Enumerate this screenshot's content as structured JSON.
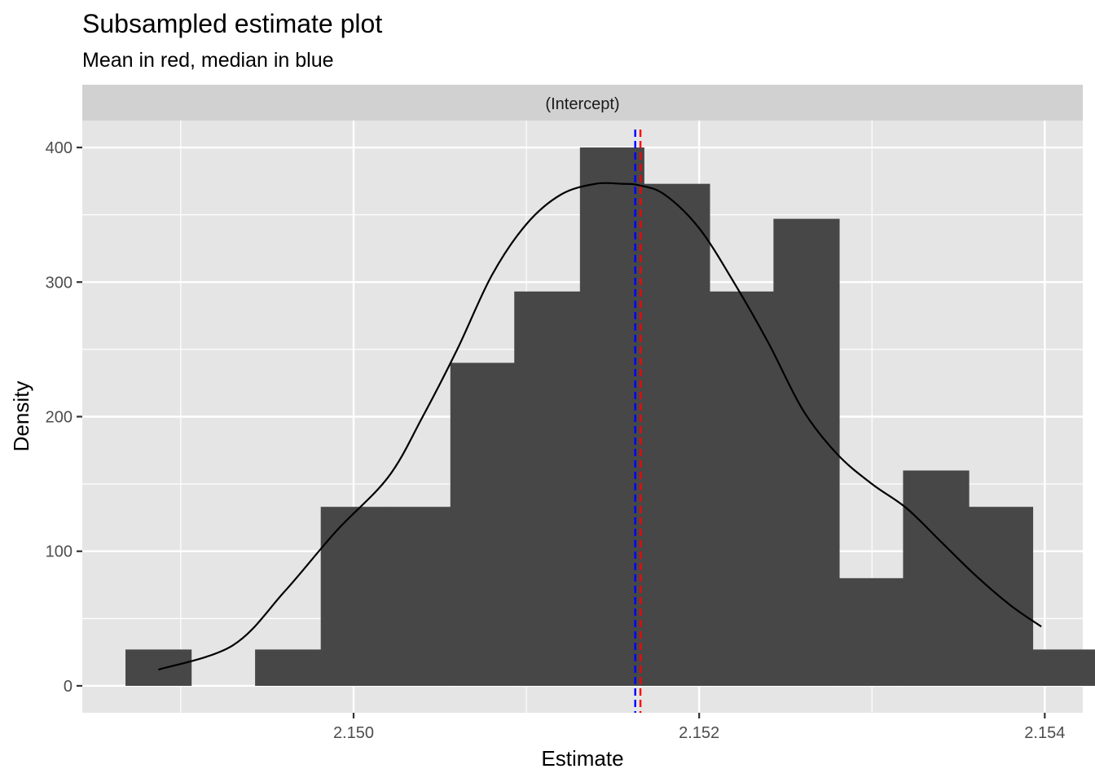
{
  "chart_data": {
    "type": "histogram",
    "title": "Subsampled estimate plot",
    "subtitle": "Mean in red, median in blue",
    "facet_label": "(Intercept)",
    "xlabel": "Estimate",
    "ylabel": "Density",
    "xlim": [
      2.14843,
      2.15422
    ],
    "ylim": [
      -20,
      420
    ],
    "x_ticks": [
      2.15,
      2.152,
      2.154
    ],
    "x_tick_labels": [
      "2.150",
      "2.152",
      "2.154"
    ],
    "y_ticks": [
      0,
      100,
      200,
      300,
      400
    ],
    "y_tick_labels": [
      "0",
      "100",
      "200",
      "300",
      "400"
    ],
    "grid": true,
    "bins": [
      {
        "x0": 2.14868,
        "x1": 2.14906,
        "density": 27
      },
      {
        "x0": 2.14906,
        "x1": 2.14943,
        "density": 0
      },
      {
        "x0": 2.14943,
        "x1": 2.14981,
        "density": 27
      },
      {
        "x0": 2.14981,
        "x1": 2.15018,
        "density": 133
      },
      {
        "x0": 2.15018,
        "x1": 2.15056,
        "density": 133
      },
      {
        "x0": 2.15056,
        "x1": 2.15093,
        "density": 240
      },
      {
        "x0": 2.15093,
        "x1": 2.15131,
        "density": 293
      },
      {
        "x0": 2.15131,
        "x1": 2.15168,
        "density": 400
      },
      {
        "x0": 2.15168,
        "x1": 2.15206,
        "density": 373
      },
      {
        "x0": 2.15206,
        "x1": 2.15243,
        "density": 293
      },
      {
        "x0": 2.15243,
        "x1": 2.15281,
        "density": 347
      },
      {
        "x0": 2.15281,
        "x1": 2.15318,
        "density": 80
      },
      {
        "x0": 2.15318,
        "x1": 2.15356,
        "density": 160
      },
      {
        "x0": 2.15356,
        "x1": 2.15393,
        "density": 133
      },
      {
        "x0": 2.15393,
        "x1": 2.15431,
        "density": 27
      }
    ],
    "density_curve": {
      "x": [
        2.14887,
        2.1493,
        2.1496,
        2.1499,
        2.1502,
        2.1504,
        2.1506,
        2.1508,
        2.151,
        2.1512,
        2.1514,
        2.15155,
        2.15165,
        2.1518,
        2.152,
        2.1522,
        2.1524,
        2.1526,
        2.1528,
        2.153,
        2.1532,
        2.1534,
        2.1536,
        2.1538,
        2.15398
      ],
      "y": [
        12,
        30,
        70,
        115,
        155,
        200,
        250,
        305,
        343,
        365,
        373,
        373,
        372,
        365,
        340,
        300,
        255,
        205,
        172,
        150,
        132,
        107,
        82,
        60,
        44
      ]
    },
    "mean": 2.15166,
    "median": 2.15163,
    "colors": {
      "panel_background": "#e5e5e5",
      "grid": "#ffffff",
      "bar_fill": "#474747",
      "curve": "#000000",
      "mean_line": "#ff0000",
      "median_line": "#0000ff",
      "strip_background": "#d1d1d1"
    }
  }
}
